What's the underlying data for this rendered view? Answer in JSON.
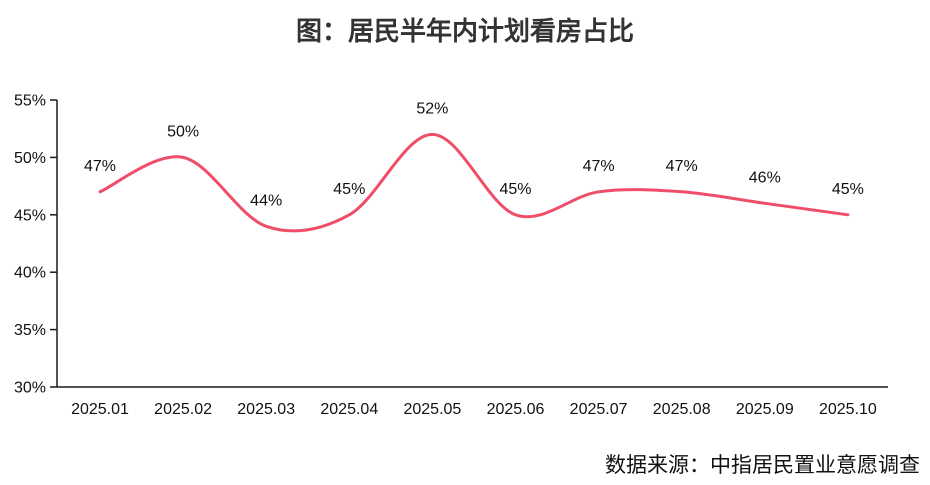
{
  "colors": {
    "background": "#ffffff",
    "line": "#ef4d68",
    "title_text": "#333333",
    "axis": "#1a1a1a",
    "label_text": "#111111"
  },
  "chart_data": {
    "type": "line",
    "smooth": true,
    "title": "图：居民半年内计划看房占比",
    "source": "数据来源：中指居民置业意愿调查",
    "categories": [
      "2025.01",
      "2025.02",
      "2025.03",
      "2025.04",
      "2025.05",
      "2025.06",
      "2025.07",
      "2025.08",
      "2025.09",
      "2025.10"
    ],
    "values": [
      47,
      50,
      44,
      45,
      52,
      45,
      47,
      47,
      46,
      45
    ],
    "data_labels": [
      "47%",
      "50%",
      "44%",
      "45%",
      "52%",
      "45%",
      "47%",
      "47%",
      "46%",
      "45%"
    ],
    "ylim": [
      30,
      55
    ],
    "yticks": [
      55,
      50,
      45,
      40,
      35,
      30
    ],
    "ytick_labels": [
      "55%",
      "50%",
      "45%",
      "40%",
      "35%",
      "30%"
    ],
    "xlabel": "",
    "ylabel": "",
    "grid": false,
    "legend": "none",
    "line_width": 3,
    "data_label_position": "above"
  }
}
